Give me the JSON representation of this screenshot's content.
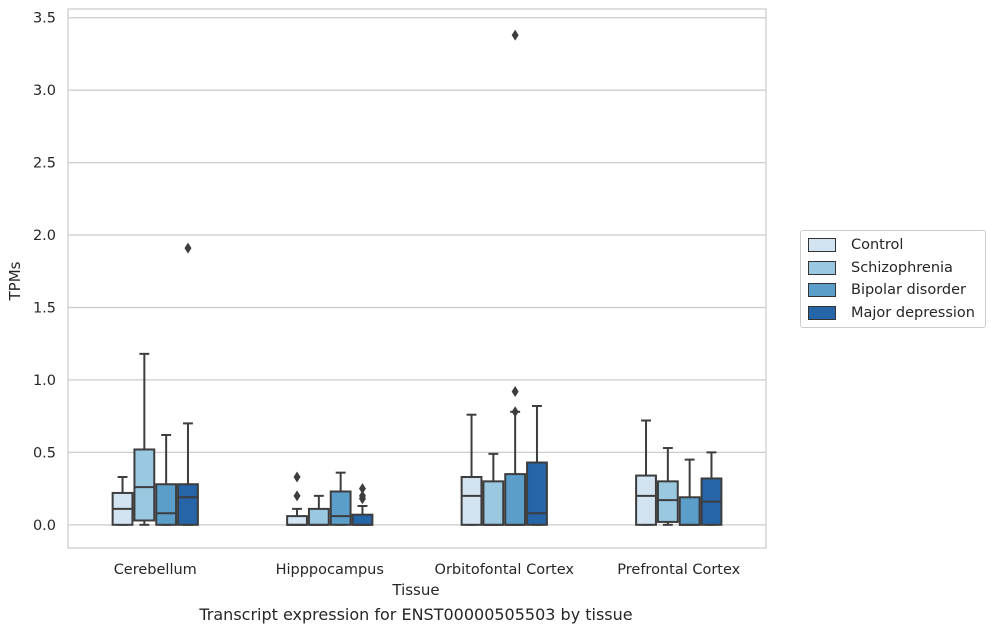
{
  "chart_data": {
    "type": "box",
    "title": "",
    "caption": "Transcript expression for ENST00000505503 by tissue",
    "xlabel": "Tissue",
    "ylabel": "TPMs",
    "ylim": [
      -0.16,
      3.56
    ],
    "yticks": [
      0.0,
      0.5,
      1.0,
      1.5,
      2.0,
      2.5,
      3.0,
      3.5
    ],
    "ytick_labels": [
      "0.0",
      "0.5",
      "1.0",
      "1.5",
      "2.0",
      "2.5",
      "3.0",
      "3.5"
    ],
    "grid": "horizontal",
    "legend_position": "outside-right",
    "categories": [
      "Cerebellum",
      "Hipppocampus",
      "Orbitofontal Cortex",
      "Prefrontal Cortex"
    ],
    "series": [
      {
        "name": "Control",
        "color": "#d2e3f2",
        "boxes": [
          {
            "whislo": 0.0,
            "q1": 0.0,
            "med": 0.11,
            "q3": 0.22,
            "whishi": 0.33,
            "fliers": []
          },
          {
            "whislo": 0.0,
            "q1": 0.0,
            "med": 0.0,
            "q3": 0.06,
            "whishi": 0.11,
            "fliers": [
              0.2,
              0.33
            ]
          },
          {
            "whislo": 0.0,
            "q1": 0.0,
            "med": 0.2,
            "q3": 0.33,
            "whishi": 0.76,
            "fliers": []
          },
          {
            "whislo": 0.0,
            "q1": 0.0,
            "med": 0.2,
            "q3": 0.34,
            "whishi": 0.72,
            "fliers": []
          }
        ]
      },
      {
        "name": "Schizophrenia",
        "color": "#9ac8e0",
        "boxes": [
          {
            "whislo": 0.0,
            "q1": 0.03,
            "med": 0.26,
            "q3": 0.52,
            "whishi": 1.18,
            "fliers": []
          },
          {
            "whislo": 0.0,
            "q1": 0.0,
            "med": 0.0,
            "q3": 0.11,
            "whishi": 0.2,
            "fliers": []
          },
          {
            "whislo": 0.0,
            "q1": 0.0,
            "med": 0.0,
            "q3": 0.3,
            "whishi": 0.49,
            "fliers": []
          },
          {
            "whislo": 0.0,
            "q1": 0.02,
            "med": 0.17,
            "q3": 0.3,
            "whishi": 0.53,
            "fliers": []
          }
        ]
      },
      {
        "name": "Bipolar disorder",
        "color": "#5a9ec9",
        "boxes": [
          {
            "whislo": 0.0,
            "q1": 0.0,
            "med": 0.08,
            "q3": 0.28,
            "whishi": 0.62,
            "fliers": []
          },
          {
            "whislo": 0.0,
            "q1": 0.0,
            "med": 0.06,
            "q3": 0.23,
            "whishi": 0.36,
            "fliers": []
          },
          {
            "whislo": 0.0,
            "q1": 0.0,
            "med": 0.0,
            "q3": 0.35,
            "whishi": 0.78,
            "fliers": [
              0.78,
              0.92,
              3.38
            ]
          },
          {
            "whislo": 0.0,
            "q1": 0.0,
            "med": 0.0,
            "q3": 0.19,
            "whishi": 0.45,
            "fliers": []
          }
        ]
      },
      {
        "name": "Major depression",
        "color": "#2565a8",
        "boxes": [
          {
            "whislo": 0.0,
            "q1": 0.0,
            "med": 0.19,
            "q3": 0.28,
            "whishi": 0.7,
            "fliers": [
              1.91
            ]
          },
          {
            "whislo": 0.0,
            "q1": 0.0,
            "med": 0.0,
            "q3": 0.07,
            "whishi": 0.13,
            "fliers": [
              0.18,
              0.2,
              0.25
            ]
          },
          {
            "whislo": 0.0,
            "q1": 0.0,
            "med": 0.08,
            "q3": 0.43,
            "whishi": 0.82,
            "fliers": []
          },
          {
            "whislo": 0.0,
            "q1": 0.0,
            "med": 0.16,
            "q3": 0.32,
            "whishi": 0.5,
            "fliers": []
          }
        ]
      }
    ]
  }
}
